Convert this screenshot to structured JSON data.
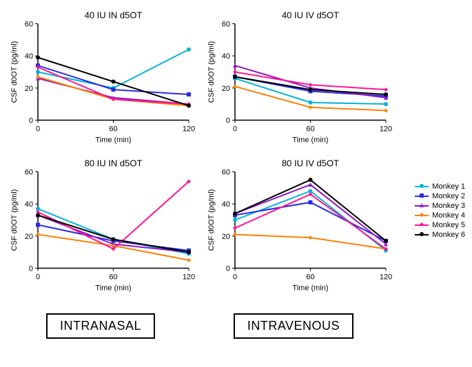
{
  "axis": {
    "xlabel": "Time (min)",
    "ylabel": "CSF d0OT (pg/ml)",
    "xlim": [
      0,
      120
    ],
    "ylim": [
      0,
      60
    ],
    "xticks": [
      0,
      60,
      120
    ],
    "yticks": [
      0,
      20,
      40,
      60
    ],
    "tick_fontsize": 11,
    "label_fontsize": 11,
    "title_fontsize": 13,
    "axis_color": "#000000",
    "background_color": "#ffffff",
    "line_width": 2
  },
  "monkeys": [
    {
      "id": 1,
      "label": "Monkey 1",
      "color": "#00b3d6",
      "marker": "circle"
    },
    {
      "id": 2,
      "label": "Monkey 2",
      "color": "#2a2ae6",
      "marker": "square"
    },
    {
      "id": 3,
      "label": "Monkey 3",
      "color": "#9016c9",
      "marker": "triangle"
    },
    {
      "id": 4,
      "label": "Monkey 4",
      "color": "#ff7f00",
      "marker": "diamond"
    },
    {
      "id": 5,
      "label": "Monkey 5",
      "color": "#ff1493",
      "marker": "diamond"
    },
    {
      "id": 6,
      "label": "Monkey 6",
      "color": "#000000",
      "marker": "circle"
    }
  ],
  "panels": [
    {
      "key": "p40in",
      "title": "40 IU IN d5OT",
      "series": [
        {
          "monkey": 1,
          "x": [
            0,
            60,
            120
          ],
          "y": [
            30,
            20,
            44
          ]
        },
        {
          "monkey": 2,
          "x": [
            0,
            60,
            120
          ],
          "y": [
            34,
            19,
            16
          ]
        },
        {
          "monkey": 3,
          "x": [
            0,
            60,
            120
          ],
          "y": [
            26,
            14,
            10
          ]
        },
        {
          "monkey": 4,
          "x": [
            0,
            60,
            120
          ],
          "y": [
            27,
            13,
            9
          ]
        },
        {
          "monkey": 5,
          "x": [
            0,
            60,
            120
          ],
          "y": [
            33,
            13,
            10
          ]
        },
        {
          "monkey": 6,
          "x": [
            0,
            60,
            120
          ],
          "y": [
            39,
            24,
            9
          ]
        }
      ]
    },
    {
      "key": "p40iv",
      "title": "40 IU IV d5OT",
      "series": [
        {
          "monkey": 1,
          "x": [
            0,
            60,
            120
          ],
          "y": [
            26,
            11,
            10
          ]
        },
        {
          "monkey": 2,
          "x": [
            0,
            60,
            120
          ],
          "y": [
            27,
            18,
            15
          ]
        },
        {
          "monkey": 3,
          "x": [
            0,
            60,
            120
          ],
          "y": [
            34,
            20,
            14
          ]
        },
        {
          "monkey": 4,
          "x": [
            0,
            60,
            120
          ],
          "y": [
            21,
            8,
            6
          ]
        },
        {
          "monkey": 5,
          "x": [
            0,
            60,
            120
          ],
          "y": [
            30,
            22,
            19
          ]
        },
        {
          "monkey": 6,
          "x": [
            0,
            60,
            120
          ],
          "y": [
            27,
            19,
            16
          ]
        }
      ]
    },
    {
      "key": "p80in",
      "title": "80 IU IN d5OT",
      "series": [
        {
          "monkey": 1,
          "x": [
            0,
            60,
            120
          ],
          "y": [
            37,
            18,
            9
          ]
        },
        {
          "monkey": 2,
          "x": [
            0,
            60,
            120
          ],
          "y": [
            27,
            17,
            11
          ]
        },
        {
          "monkey": 3,
          "x": [
            0,
            60,
            120
          ],
          "y": [
            33,
            15,
            10
          ]
        },
        {
          "monkey": 4,
          "x": [
            0,
            60,
            120
          ],
          "y": [
            21,
            14,
            5
          ]
        },
        {
          "monkey": 5,
          "x": [
            0,
            60,
            120
          ],
          "y": [
            35,
            12,
            54
          ]
        },
        {
          "monkey": 6,
          "x": [
            0,
            60,
            120
          ],
          "y": [
            33,
            18,
            10
          ]
        }
      ]
    },
    {
      "key": "p80iv",
      "title": "80 IU IV d5OT",
      "series": [
        {
          "monkey": 1,
          "x": [
            0,
            60,
            120
          ],
          "y": [
            30,
            48,
            11
          ]
        },
        {
          "monkey": 2,
          "x": [
            0,
            60,
            120
          ],
          "y": [
            33,
            41,
            17
          ]
        },
        {
          "monkey": 3,
          "x": [
            0,
            60,
            120
          ],
          "y": [
            34,
            52,
            15
          ]
        },
        {
          "monkey": 4,
          "x": [
            0,
            60,
            120
          ],
          "y": [
            21,
            19,
            12
          ]
        },
        {
          "monkey": 5,
          "x": [
            0,
            60,
            120
          ],
          "y": [
            25,
            46,
            12
          ]
        },
        {
          "monkey": 6,
          "x": [
            0,
            60,
            120
          ],
          "y": [
            34,
            55,
            17
          ]
        }
      ]
    }
  ],
  "bottom_labels": {
    "left": "INTRANASAL",
    "right": "INTRAVENOUS",
    "border_color": "#000000",
    "fontsize": 18
  },
  "legend": {
    "title": null,
    "fontsize": 11
  }
}
